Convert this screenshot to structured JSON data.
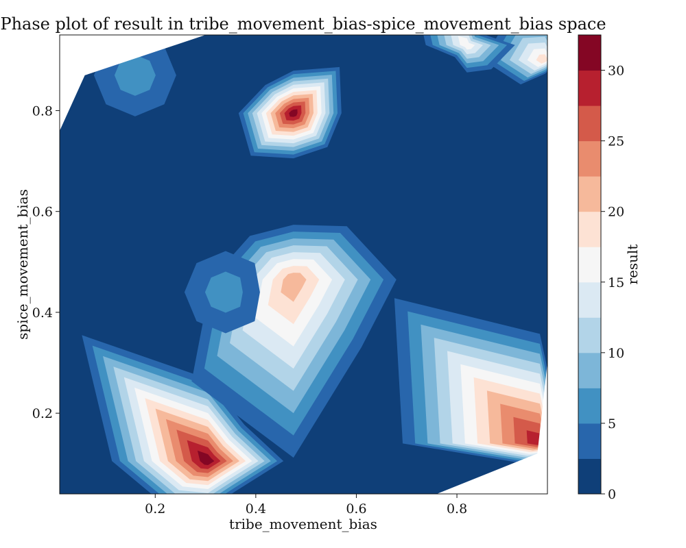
{
  "chart_data": {
    "type": "contour",
    "title": "Phase plot of result in tribe_movement_bias-spice_movement_bias space",
    "xlabel": "tribe_movement_bias",
    "ylabel": "spice_movement_bias",
    "colorbar_label": "result",
    "xlim": [
      0.01,
      0.98
    ],
    "ylim": [
      0.04,
      0.95
    ],
    "x_ticks": [
      "0.2",
      "0.4",
      "0.6",
      "0.8"
    ],
    "y_ticks": [
      "0.2",
      "0.4",
      "0.6",
      "0.8"
    ],
    "colorbar_range": [
      0,
      32.5
    ],
    "colorbar_ticks": [
      "0",
      "5",
      "10",
      "15",
      "20",
      "25",
      "30"
    ],
    "level_step": 2.5,
    "colormap": [
      "#0f3f78",
      "#2866ac",
      "#4191c2",
      "#7db6d8",
      "#b2d4e8",
      "#dbe9f3",
      "#f6f6f6",
      "#fde2d4",
      "#f6b99b",
      "#e98c6e",
      "#d45a4a",
      "#b7202f",
      "#840624"
    ],
    "peaks": [
      {
        "x": 0.475,
        "y": 0.795,
        "value": 32
      },
      {
        "x": 0.305,
        "y": 0.105,
        "value": 30
      },
      {
        "x": 0.475,
        "y": 0.465,
        "value": 20
      },
      {
        "x": 0.965,
        "y": 0.14,
        "value": 28
      },
      {
        "x": 0.975,
        "y": 0.9,
        "value": 18
      },
      {
        "x": 0.82,
        "y": 0.93,
        "value": 16
      },
      {
        "x": 0.16,
        "y": 0.87,
        "value": 6
      },
      {
        "x": 0.34,
        "y": 0.44,
        "value": 6
      }
    ]
  }
}
